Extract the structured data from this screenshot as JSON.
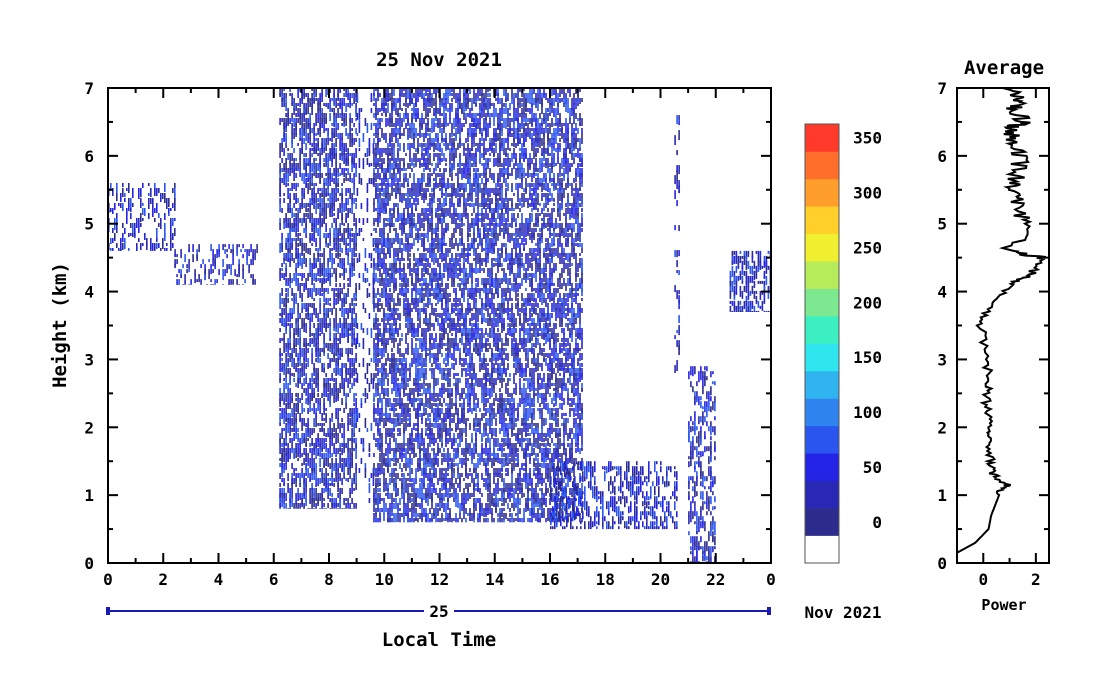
{
  "chart_data": [
    {
      "type": "heatmap",
      "title": "25 Nov 2021",
      "xlabel": "Local Time",
      "ylabel": "Height (km)",
      "x_ticks": [
        "0",
        "2",
        "4",
        "6",
        "8",
        "10",
        "12",
        "14",
        "16",
        "18",
        "20",
        "22",
        "0"
      ],
      "y_ticks": [
        "0",
        "1",
        "2",
        "3",
        "4",
        "5",
        "6",
        "7"
      ],
      "xlim": [
        0,
        24
      ],
      "ylim": [
        0,
        7
      ],
      "date_bar_label": "25",
      "date_suffix": "Nov 2021",
      "colorbar": {
        "tick_labels": [
          "0",
          "50",
          "100",
          "150",
          "200",
          "250",
          "300",
          "350"
        ],
        "levels": [
          0,
          50,
          100,
          150,
          200,
          250,
          300,
          350
        ],
        "colors": [
          "#ffffff",
          "#2c2c8c",
          "#2828b4",
          "#2424e6",
          "#2a56ef",
          "#2f84ef",
          "#2fb4ef",
          "#2fe6ef",
          "#3cefc0",
          "#7ce890",
          "#b6ec5a",
          "#f0f030",
          "#ffd02a",
          "#ff9e2a",
          "#ff6e2a",
          "#ff3a2a"
        ]
      },
      "series": [
        {
          "regions": [
            {
              "t0": 0.0,
              "t1": 2.4,
              "h": [
                4.6,
                5.6
              ],
              "density": 0.35
            },
            {
              "t0": 2.4,
              "t1": 5.4,
              "h": [
                4.1,
                4.7
              ],
              "density": 0.3
            },
            {
              "t0": 6.2,
              "t1": 9.0,
              "h": [
                0.8,
                7.0
              ],
              "density": 0.55
            },
            {
              "t0": 9.0,
              "t1": 9.6,
              "h": [
                0.8,
                7.0
              ],
              "density": 0.15
            },
            {
              "t0": 9.6,
              "t1": 17.2,
              "h": [
                0.6,
                7.0
              ],
              "density": 0.6
            },
            {
              "t0": 16.0,
              "t1": 20.6,
              "h": [
                0.5,
                1.5
              ],
              "density": 0.45
            },
            {
              "t0": 20.5,
              "t1": 20.7,
              "h": [
                2.8,
                6.6
              ],
              "density": 0.25
            },
            {
              "t0": 21.0,
              "t1": 22.0,
              "h": [
                0.0,
                2.9
              ],
              "density": 0.35
            },
            {
              "t0": 22.5,
              "t1": 24.0,
              "h": [
                3.7,
                4.6
              ],
              "density": 0.55
            }
          ]
        }
      ]
    },
    {
      "type": "line",
      "title": "Average",
      "xlabel": "Power",
      "ylabel": "",
      "x_ticks": [
        "0",
        "2"
      ],
      "y_ticks": [
        "0",
        "1",
        "2",
        "3",
        "4",
        "5",
        "6",
        "7"
      ],
      "xlim": [
        -1,
        2.5
      ],
      "ylim": [
        0,
        7
      ],
      "series": [
        {
          "x": [
            -1.0,
            -0.3,
            0.2,
            0.3,
            0.5,
            0.7,
            0.9,
            0.4,
            0.3,
            0.2,
            0.3,
            0.1,
            0.2,
            0.15,
            -0.1,
            0.3,
            1.0,
            1.8,
            2.2,
            1.0,
            1.6,
            1.3,
            1.2,
            1.3,
            1.4,
            1.2,
            1.0,
            1.5,
            1.2,
            1.3,
            1.0
          ],
          "y": [
            0.15,
            0.3,
            0.5,
            0.7,
            0.9,
            1.1,
            1.15,
            1.3,
            1.5,
            1.8,
            2.0,
            2.3,
            2.6,
            3.0,
            3.5,
            3.8,
            4.1,
            4.25,
            4.5,
            4.6,
            5.0,
            5.3,
            5.5,
            5.7,
            6.0,
            6.2,
            6.4,
            6.5,
            6.7,
            6.85,
            7.0
          ]
        }
      ]
    }
  ]
}
